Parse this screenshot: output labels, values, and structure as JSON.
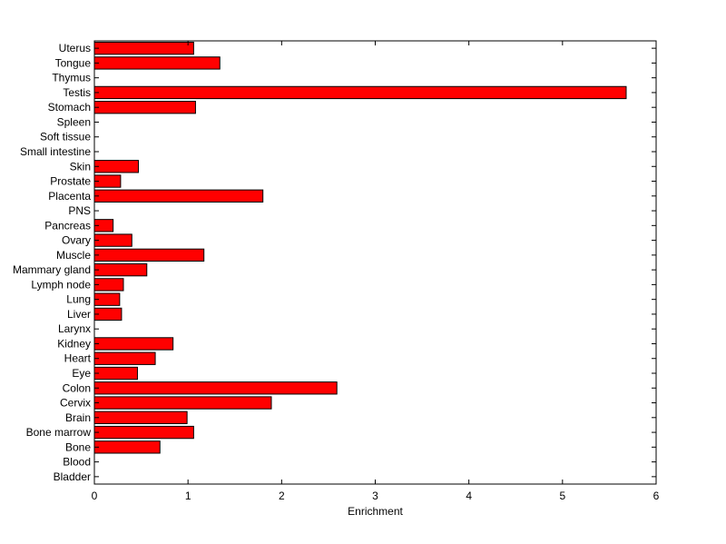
{
  "chart_data": {
    "type": "bar",
    "orientation": "horizontal",
    "title": "",
    "xlabel": "Enrichment",
    "ylabel": "",
    "xlim": [
      0,
      6
    ],
    "x_ticks": [
      0,
      1,
      2,
      3,
      4,
      5,
      6
    ],
    "grid": false,
    "legend": "none",
    "bar_color": "#ff0000",
    "edge_color": "#000000",
    "categories": [
      "Uterus",
      "Tongue",
      "Thymus",
      "Testis",
      "Stomach",
      "Spleen",
      "Soft tissue",
      "Small intestine",
      "Skin",
      "Prostate",
      "Placenta",
      "PNS",
      "Pancreas",
      "Ovary",
      "Muscle",
      "Mammary gland",
      "Lymph node",
      "Lung",
      "Liver",
      "Larynx",
      "Kidney",
      "Heart",
      "Eye",
      "Colon",
      "Cervix",
      "Brain",
      "Bone marrow",
      "Bone",
      "Blood",
      "Bladder"
    ],
    "values": [
      1.06,
      1.34,
      0,
      5.68,
      1.08,
      0,
      0,
      0,
      0.47,
      0.28,
      1.8,
      0,
      0.2,
      0.4,
      1.17,
      0.56,
      0.31,
      0.27,
      0.29,
      0,
      0.84,
      0.65,
      0.46,
      2.59,
      1.89,
      0.99,
      1.06,
      0.7,
      0,
      0
    ]
  }
}
